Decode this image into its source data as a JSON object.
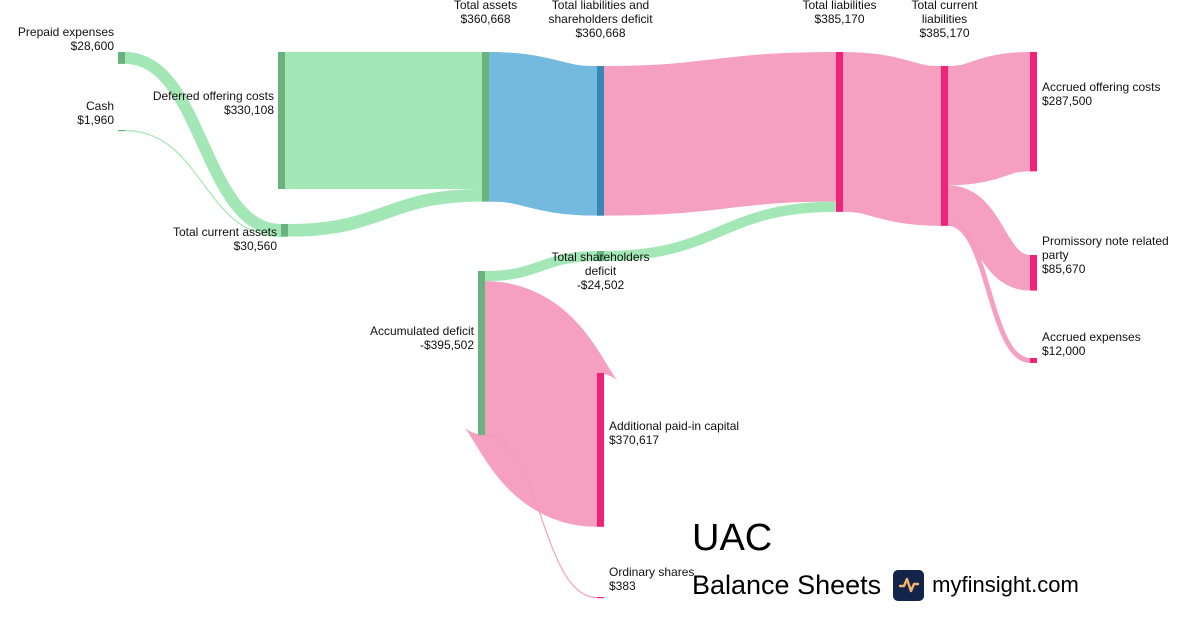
{
  "brand": {
    "ticker": "UAC",
    "subtitle": "Balance Sheets",
    "site": "myfinsight.com",
    "logo_icon": "pulse-chart-icon"
  },
  "chart_data": {
    "type": "sankey",
    "title": "UAC Balance Sheets",
    "nodes": [
      {
        "id": "prepaid",
        "name": "Prepaid expenses",
        "value_label": "$28,600",
        "value": 28600,
        "color": "#6bb37e"
      },
      {
        "id": "cash",
        "name": "Cash",
        "value_label": "$1,960",
        "value": 1960,
        "color": "#6bb37e"
      },
      {
        "id": "deferred",
        "name": "Deferred offering costs",
        "value_label": "$330,108",
        "value": 330108,
        "color": "#6bb37e"
      },
      {
        "id": "tca",
        "name": "Total current assets",
        "value_label": "$30,560",
        "value": 30560,
        "color": "#6bb37e"
      },
      {
        "id": "ta",
        "name": "Total assets",
        "value_label": "$360,668",
        "value": 360668,
        "color": "#6bb37e"
      },
      {
        "id": "tlsd",
        "name": "Total liabilities and shareholders deficit",
        "value_label": "$360,668",
        "value": 360668,
        "color": "#3a87b3"
      },
      {
        "id": "tl",
        "name": "Total liabilities",
        "value_label": "$385,170",
        "value": 385170,
        "color": "#f0227a"
      },
      {
        "id": "tcl",
        "name": "Total current liabilities",
        "value_label": "$385,170",
        "value": 385170,
        "color": "#f0227a"
      },
      {
        "id": "aoc",
        "name": "Accrued offering costs",
        "value_label": "$287,500",
        "value": 287500,
        "color": "#f0227a"
      },
      {
        "id": "pnrp",
        "name": "Promissory note related party",
        "value_label": "$85,670",
        "value": 85670,
        "color": "#f0227a"
      },
      {
        "id": "ae",
        "name": "Accrued expenses",
        "value_label": "$12,000",
        "value": 12000,
        "color": "#f0227a"
      },
      {
        "id": "tsd",
        "name": "Total shareholders deficit",
        "value_label": "-$24,502",
        "value": -24502,
        "color": "#6bb37e"
      },
      {
        "id": "acd",
        "name": "Accumulated deficit",
        "value_label": "-$395,502",
        "value": -395502,
        "color": "#6bb37e"
      },
      {
        "id": "apic",
        "name": "Additional paid-in capital",
        "value_label": "$370,617",
        "value": 370617,
        "color": "#f0227a"
      },
      {
        "id": "os",
        "name": "Ordinary shares",
        "value_label": "$383",
        "value": 383,
        "color": "#f0227a"
      }
    ],
    "links": [
      {
        "source": "prepaid",
        "target": "tca",
        "value": 28600,
        "color": "#9de6b1"
      },
      {
        "source": "cash",
        "target": "tca",
        "value": 1960,
        "color": "#9de6b1"
      },
      {
        "source": "deferred",
        "target": "ta",
        "value": 330108,
        "color": "#9de6b1"
      },
      {
        "source": "tca",
        "target": "ta",
        "value": 30560,
        "color": "#9de6b1"
      },
      {
        "source": "ta",
        "target": "tlsd",
        "value": 360668,
        "color": "#6bb6dc"
      },
      {
        "source": "tlsd",
        "target": "tl",
        "value": 360668,
        "color": "#f49bbd"
      },
      {
        "source": "tsd",
        "target": "tl",
        "value": 24502,
        "color": "#9de6b1"
      },
      {
        "source": "tl",
        "target": "tcl",
        "value": 385170,
        "color": "#f49bbd"
      },
      {
        "source": "tcl",
        "target": "aoc",
        "value": 287500,
        "color": "#f49bbd"
      },
      {
        "source": "tcl",
        "target": "pnrp",
        "value": 85670,
        "color": "#f49bbd"
      },
      {
        "source": "tcl",
        "target": "ae",
        "value": 12000,
        "color": "#f49bbd"
      },
      {
        "source": "acd",
        "target": "tsd",
        "value": 24502,
        "color": "#9de6b1"
      },
      {
        "source": "acd",
        "target": "apic",
        "value": 370617,
        "color": "#f49bbd"
      },
      {
        "source": "acd",
        "target": "os",
        "value": 383,
        "color": "#f49bbd"
      }
    ]
  }
}
